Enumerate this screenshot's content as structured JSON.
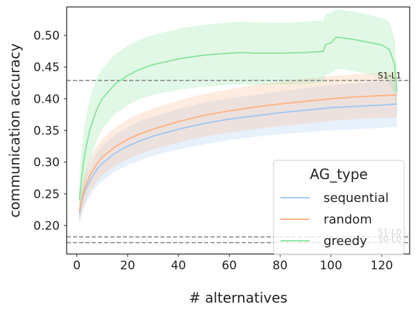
{
  "chart_data": {
    "type": "line",
    "xlabel": "# alternatives",
    "ylabel": "communication accuracy",
    "xlim": [
      -4,
      131
    ],
    "ylim": [
      0.155,
      0.545
    ],
    "xticks": [
      0,
      20,
      40,
      60,
      80,
      100,
      120
    ],
    "yticks": [
      0.2,
      0.25,
      0.3,
      0.35,
      0.4,
      0.45,
      0.5
    ],
    "grid": false,
    "legend": {
      "title": "AG_type",
      "position": "lower-right"
    },
    "reference_lines": [
      {
        "label": "S1-L1",
        "y": 0.429,
        "color": "#808080"
      },
      {
        "label": "S1-L0",
        "y": 0.182,
        "color": "#808080"
      },
      {
        "label": "S0-L0",
        "y": 0.173,
        "color": "#808080"
      }
    ],
    "series": [
      {
        "name": "sequential",
        "color": "#a1c9f4",
        "x": [
          1,
          2,
          3,
          5,
          8,
          10,
          15,
          20,
          25,
          30,
          40,
          50,
          60,
          70,
          80,
          90,
          100,
          110,
          120,
          126
        ],
        "y": [
          0.218,
          0.238,
          0.252,
          0.27,
          0.289,
          0.298,
          0.314,
          0.325,
          0.334,
          0.341,
          0.352,
          0.361,
          0.368,
          0.373,
          0.378,
          0.382,
          0.386,
          0.388,
          0.39,
          0.392
        ],
        "lower": [
          0.203,
          0.218,
          0.23,
          0.246,
          0.262,
          0.27,
          0.285,
          0.295,
          0.303,
          0.31,
          0.32,
          0.328,
          0.335,
          0.34,
          0.344,
          0.347,
          0.35,
          0.352,
          0.354,
          0.356
        ],
        "upper": [
          0.233,
          0.258,
          0.274,
          0.294,
          0.316,
          0.326,
          0.343,
          0.355,
          0.365,
          0.372,
          0.384,
          0.394,
          0.401,
          0.406,
          0.412,
          0.417,
          0.422,
          0.425,
          0.427,
          0.428
        ]
      },
      {
        "name": "random",
        "color": "#ffb482",
        "x": [
          1,
          2,
          3,
          5,
          8,
          10,
          15,
          20,
          25,
          30,
          40,
          50,
          60,
          70,
          80,
          90,
          100,
          110,
          120,
          126
        ],
        "y": [
          0.222,
          0.243,
          0.258,
          0.278,
          0.298,
          0.308,
          0.324,
          0.336,
          0.345,
          0.352,
          0.364,
          0.374,
          0.381,
          0.387,
          0.392,
          0.396,
          0.4,
          0.403,
          0.405,
          0.406
        ],
        "lower": [
          0.206,
          0.222,
          0.234,
          0.252,
          0.27,
          0.279,
          0.294,
          0.305,
          0.313,
          0.32,
          0.331,
          0.34,
          0.347,
          0.352,
          0.357,
          0.361,
          0.365,
          0.368,
          0.37,
          0.37
        ],
        "upper": [
          0.238,
          0.264,
          0.282,
          0.304,
          0.326,
          0.337,
          0.354,
          0.367,
          0.377,
          0.385,
          0.397,
          0.408,
          0.415,
          0.422,
          0.427,
          0.432,
          0.436,
          0.439,
          0.441,
          0.442
        ]
      },
      {
        "name": "greedy",
        "color": "#8de5a1",
        "x": [
          1,
          2,
          3,
          5,
          8,
          10,
          15,
          20,
          25,
          30,
          40,
          50,
          60,
          65,
          70,
          80,
          90,
          97,
          98,
          100,
          102,
          105,
          110,
          115,
          120,
          123,
          125,
          126
        ],
        "y": [
          0.24,
          0.28,
          0.31,
          0.35,
          0.385,
          0.4,
          0.423,
          0.437,
          0.447,
          0.454,
          0.463,
          0.469,
          0.472,
          0.473,
          0.472,
          0.472,
          0.473,
          0.475,
          0.486,
          0.488,
          0.497,
          0.496,
          0.493,
          0.489,
          0.485,
          0.478,
          0.455,
          0.411
        ],
        "lower": [
          0.2,
          0.235,
          0.262,
          0.3,
          0.335,
          0.352,
          0.376,
          0.39,
          0.4,
          0.406,
          0.414,
          0.419,
          0.422,
          0.423,
          0.422,
          0.422,
          0.423,
          0.426,
          0.438,
          0.44,
          0.447,
          0.446,
          0.443,
          0.439,
          0.434,
          0.426,
          0.405,
          0.37
        ],
        "upper": [
          0.28,
          0.325,
          0.358,
          0.4,
          0.435,
          0.448,
          0.47,
          0.484,
          0.494,
          0.501,
          0.511,
          0.517,
          0.521,
          0.522,
          0.521,
          0.52,
          0.522,
          0.524,
          0.534,
          0.536,
          0.541,
          0.54,
          0.537,
          0.533,
          0.528,
          0.522,
          0.498,
          0.455
        ]
      }
    ]
  }
}
